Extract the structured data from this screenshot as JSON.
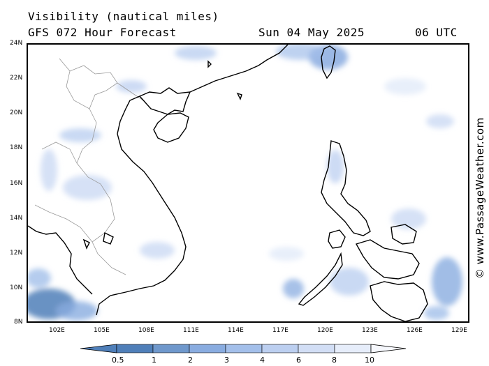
{
  "header": {
    "title": "Visibility (nautical miles)",
    "subtitle": "GFS 072 Hour Forecast",
    "date": "Sun 04 May 2025",
    "time": "06 UTC"
  },
  "map": {
    "latitude_labels": [
      "24N",
      "22N",
      "20N",
      "18N",
      "16N",
      "14N",
      "12N",
      "10N",
      "8N"
    ],
    "longitude_labels": [
      "102E",
      "105E",
      "108E",
      "111E",
      "114E",
      "117E",
      "120E",
      "123E",
      "126E",
      "129E"
    ],
    "lat_range": [
      8,
      24
    ],
    "lon_range": [
      100,
      129.7
    ]
  },
  "watermark": "© www.PassageWeather.com",
  "colorbar": {
    "labels": [
      "0.5",
      "1",
      "2",
      "3",
      "4",
      "6",
      "8",
      "10"
    ],
    "colors": [
      "#4f7fb9",
      "#6f98cc",
      "#89ace0",
      "#a3bfea",
      "#bccff0",
      "#d2def5",
      "#e6edfa",
      "#f6f8fd"
    ]
  }
}
